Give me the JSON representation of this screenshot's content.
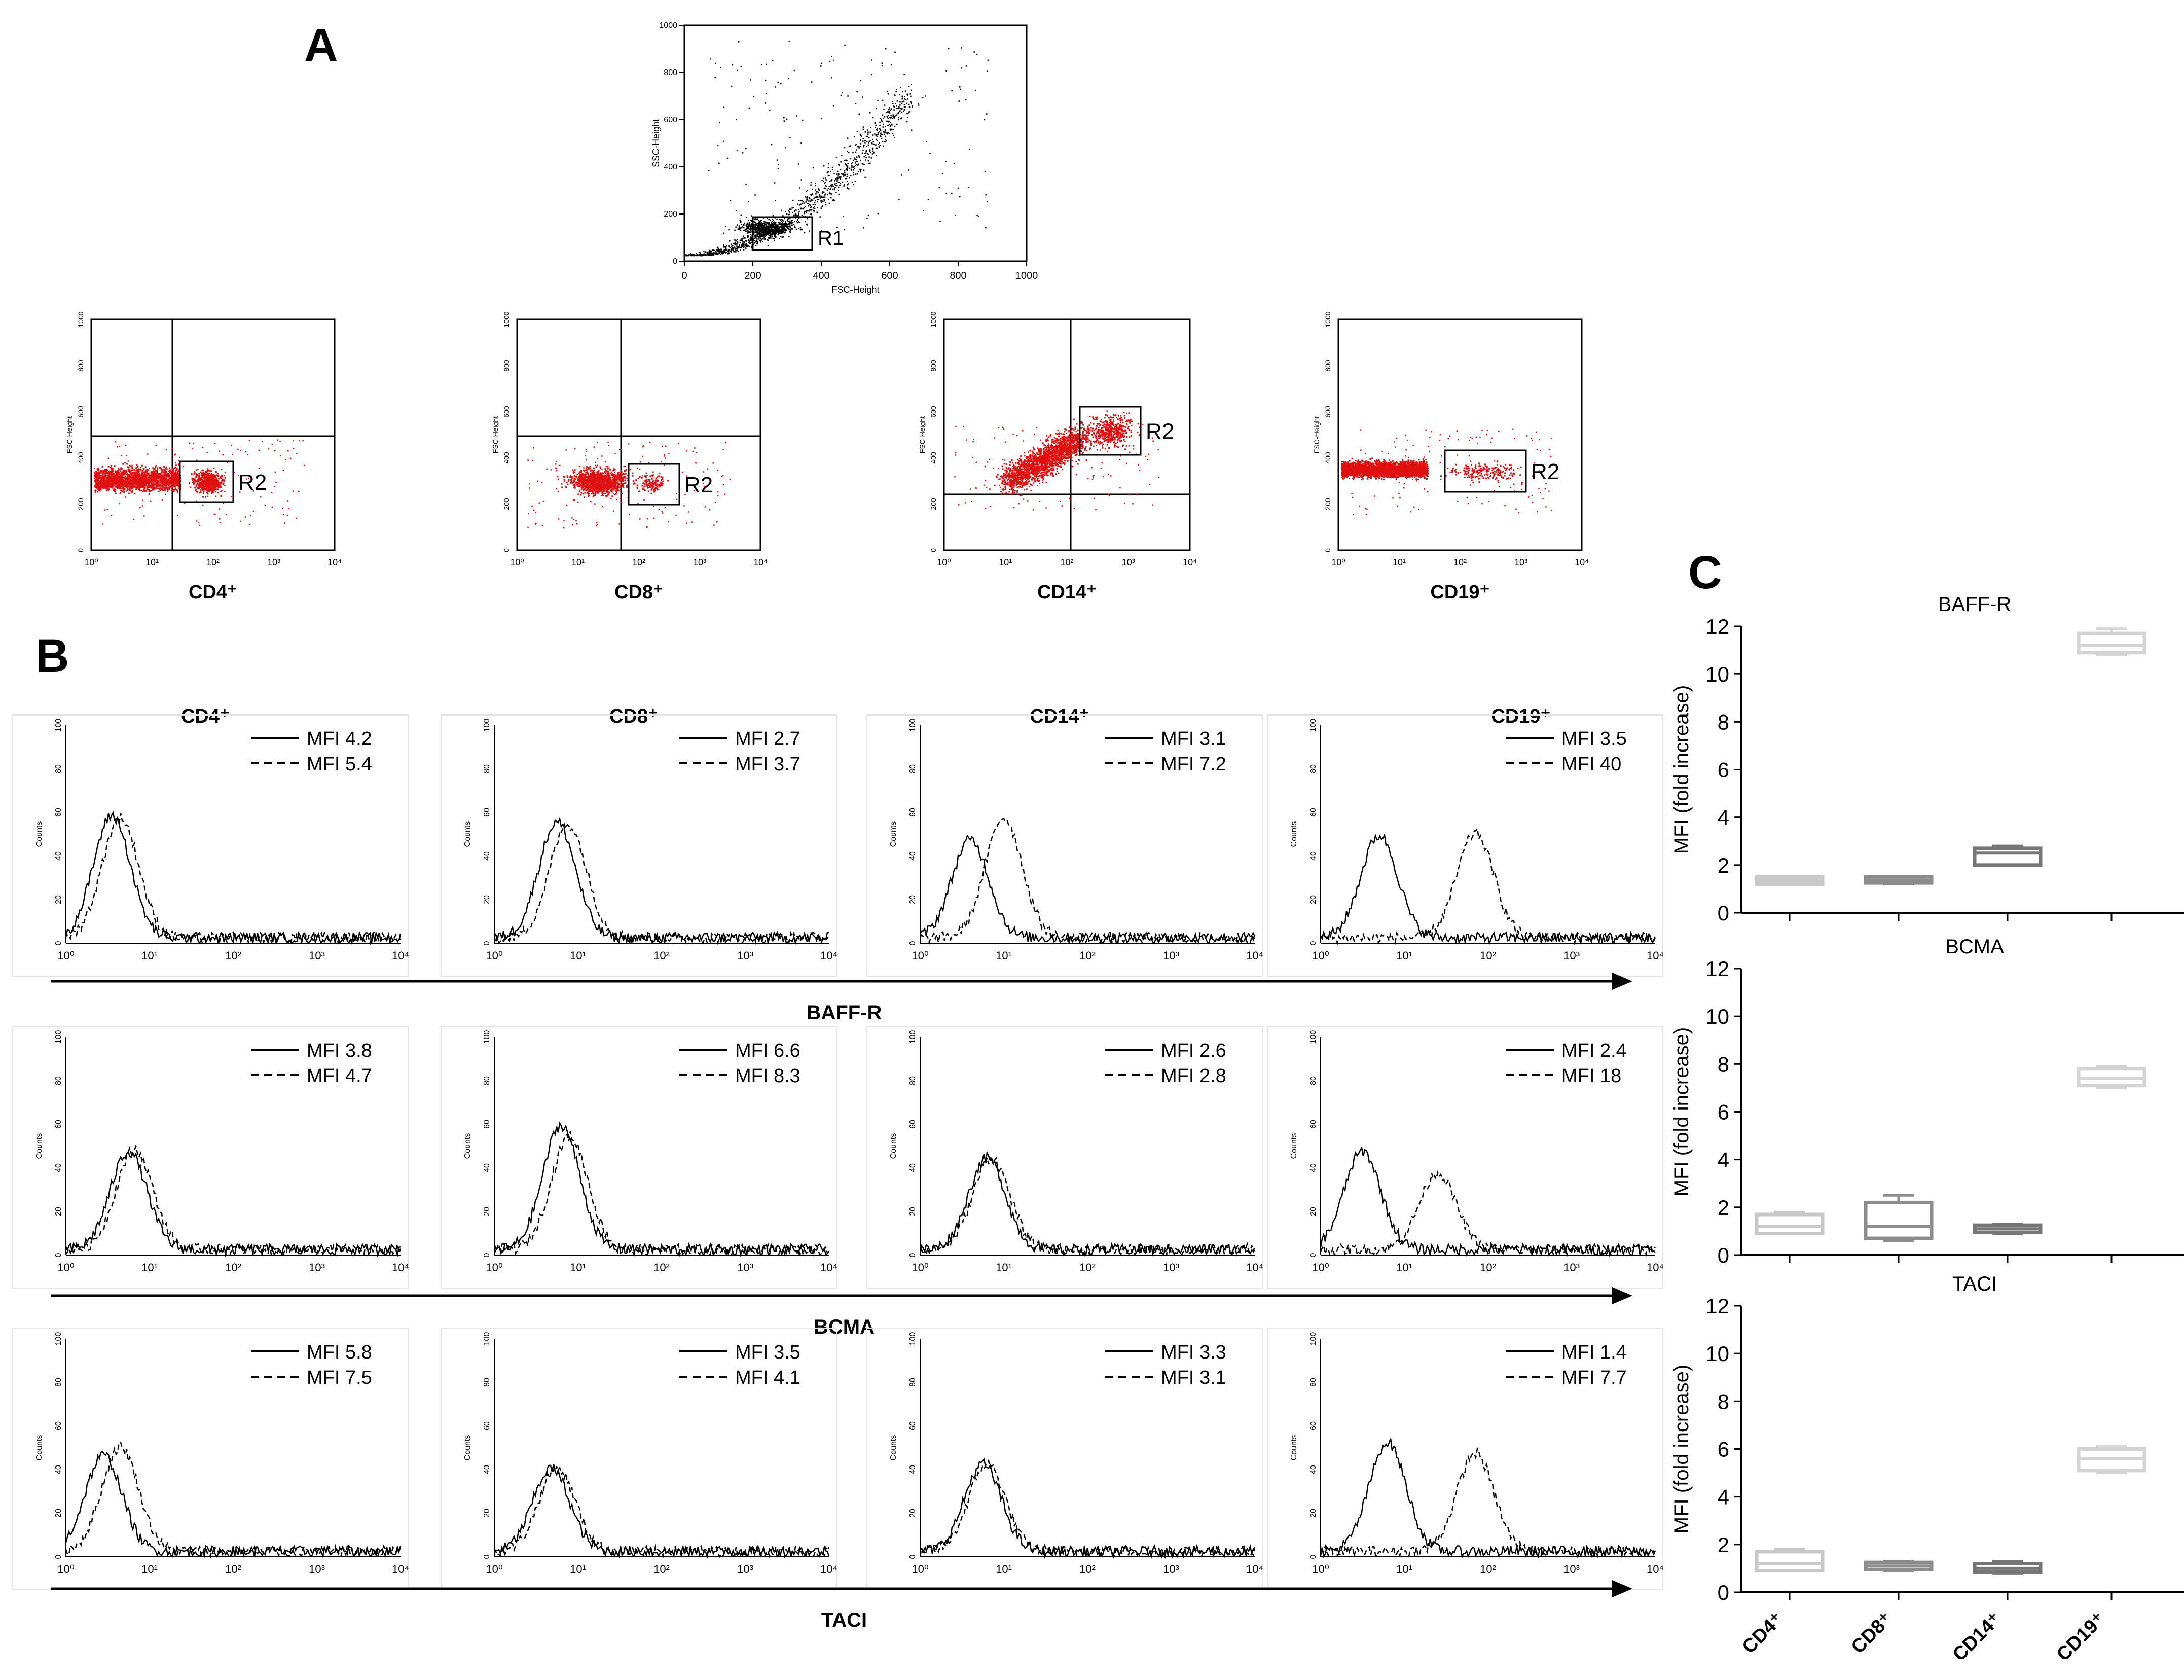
{
  "panel_a": {
    "label": "A",
    "gate": {
      "xlabel": "FSC-Height",
      "ylabel": "SSC-Height",
      "ticks": [
        "0",
        "200",
        "400",
        "600",
        "800",
        "1000"
      ],
      "region": "R1"
    },
    "gated_ylabel": "FSC-Height",
    "gated_yticks": [
      "0",
      "200",
      "400",
      "600",
      "800",
      "1000"
    ],
    "region": "R2",
    "log_ticks": [
      "10⁰",
      "10¹",
      "10²",
      "10³",
      "10⁴"
    ],
    "plots": [
      {
        "label": "CD4⁺"
      },
      {
        "label": "CD8⁺"
      },
      {
        "label": "CD14⁺"
      },
      {
        "label": "CD19⁺"
      }
    ]
  },
  "panel_b": {
    "label": "B",
    "ylabel": "Counts",
    "yticks": [
      "0",
      "20",
      "40",
      "60",
      "80",
      "100"
    ],
    "xticks": [
      "10⁰",
      "10¹",
      "10²",
      "10³",
      "10⁴"
    ],
    "columns": [
      "CD4⁺",
      "CD8⁺",
      "CD14⁺",
      "CD19⁺"
    ],
    "rows": [
      {
        "marker": "BAFF-R",
        "mfi": [
          [
            "MFI 4.2",
            "MFI 5.4"
          ],
          [
            "MFI 2.7",
            "MFI 3.7"
          ],
          [
            "MFI 3.1",
            "MFI 7.2"
          ],
          [
            "MFI 3.5",
            "MFI 40"
          ]
        ]
      },
      {
        "marker": "BCMA",
        "mfi": [
          [
            "MFI 3.8",
            "MFI 4.7"
          ],
          [
            "MFI 6.6",
            "MFI 8.3"
          ],
          [
            "MFI 2.6",
            "MFI 2.8"
          ],
          [
            "MFI 2.4",
            "MFI 18"
          ]
        ]
      },
      {
        "marker": "TACI",
        "mfi": [
          [
            "MFI 5.8",
            "MFI 7.5"
          ],
          [
            "MFI 3.5",
            "MFI 4.1"
          ],
          [
            "MFI 3.3",
            "MFI 3.1"
          ],
          [
            "MFI 1.4",
            "MFI 7.7"
          ]
        ]
      }
    ]
  },
  "panel_c": {
    "label": "C",
    "colors": {
      "CD4⁺": "#c8c8c8",
      "CD8⁺": "#8c8c8c",
      "CD14⁺": "#767676",
      "CD19⁺": "#d4d4d4"
    }
  },
  "chart_data": [
    {
      "type": "box",
      "title": "BAFF-R",
      "ylabel": "MFI (fold increase)",
      "ylim": [
        0,
        12
      ],
      "yticks": [
        "0",
        "2",
        "4",
        "6",
        "8",
        "10",
        "12"
      ],
      "categories": [
        "CD4⁺",
        "CD8⁺",
        "CD14⁺",
        "CD19⁺"
      ],
      "boxes": [
        {
          "min": 1.2,
          "q1": 1.2,
          "median": 1.35,
          "q3": 1.5,
          "max": 1.5
        },
        {
          "min": 1.2,
          "q1": 1.25,
          "median": 1.35,
          "q3": 1.5,
          "max": 1.5
        },
        {
          "min": 2.0,
          "q1": 2.0,
          "median": 2.5,
          "q3": 2.7,
          "max": 2.8
        },
        {
          "min": 10.8,
          "q1": 10.9,
          "median": 11.2,
          "q3": 11.7,
          "max": 11.9
        }
      ]
    },
    {
      "type": "box",
      "title": "BCMA",
      "ylabel": "MFI (fold increase)",
      "ylim": [
        0,
        12
      ],
      "yticks": [
        "0",
        "2",
        "4",
        "6",
        "8",
        "10",
        "12"
      ],
      "categories": [
        "CD4⁺",
        "CD8⁺",
        "CD14⁺",
        "CD19⁺"
      ],
      "boxes": [
        {
          "min": 0.9,
          "q1": 0.9,
          "median": 1.2,
          "q3": 1.7,
          "max": 1.8
        },
        {
          "min": 0.6,
          "q1": 0.7,
          "median": 1.2,
          "q3": 2.2,
          "max": 2.5
        },
        {
          "min": 0.9,
          "q1": 0.95,
          "median": 1.1,
          "q3": 1.25,
          "max": 1.3
        },
        {
          "min": 7.0,
          "q1": 7.1,
          "median": 7.4,
          "q3": 7.8,
          "max": 7.9
        }
      ]
    },
    {
      "type": "box",
      "title": "TACI",
      "ylabel": "MFI (fold increase)",
      "ylim": [
        0,
        12
      ],
      "yticks": [
        "0",
        "2",
        "4",
        "6",
        "8",
        "10",
        "12"
      ],
      "categories": [
        "CD4⁺",
        "CD8⁺",
        "CD14⁺",
        "CD19⁺"
      ],
      "boxes": [
        {
          "min": 0.9,
          "q1": 0.9,
          "median": 1.2,
          "q3": 1.7,
          "max": 1.8
        },
        {
          "min": 0.9,
          "q1": 0.95,
          "median": 1.1,
          "q3": 1.25,
          "max": 1.3
        },
        {
          "min": 0.8,
          "q1": 0.85,
          "median": 1.0,
          "q3": 1.2,
          "max": 1.3
        },
        {
          "min": 5.0,
          "q1": 5.1,
          "median": 5.6,
          "q3": 6.0,
          "max": 6.1
        }
      ]
    }
  ]
}
